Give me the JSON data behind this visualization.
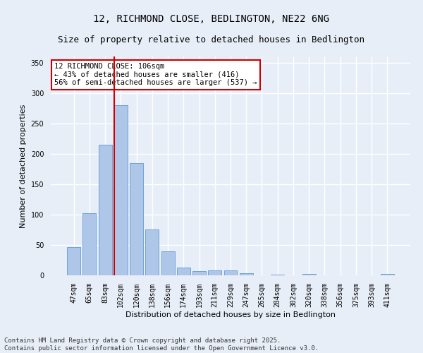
{
  "title_line1": "12, RICHMOND CLOSE, BEDLINGTON, NE22 6NG",
  "title_line2": "Size of property relative to detached houses in Bedlington",
  "xlabel": "Distribution of detached houses by size in Bedlington",
  "ylabel": "Number of detached properties",
  "categories": [
    "47sqm",
    "65sqm",
    "83sqm",
    "102sqm",
    "120sqm",
    "138sqm",
    "156sqm",
    "174sqm",
    "193sqm",
    "211sqm",
    "229sqm",
    "247sqm",
    "265sqm",
    "284sqm",
    "302sqm",
    "320sqm",
    "338sqm",
    "356sqm",
    "375sqm",
    "393sqm",
    "411sqm"
  ],
  "values": [
    47,
    102,
    215,
    280,
    185,
    75,
    40,
    13,
    7,
    8,
    8,
    4,
    0,
    1,
    0,
    2,
    0,
    0,
    0,
    0,
    2
  ],
  "bar_color": "#aec6e8",
  "bar_edge_color": "#5b9bd5",
  "vline_color": "#cc0000",
  "annotation_text": "12 RICHMOND CLOSE: 106sqm\n← 43% of detached houses are smaller (416)\n56% of semi-detached houses are larger (537) →",
  "annotation_box_color": "#ffffff",
  "annotation_box_edge": "#cc0000",
  "ylim": [
    0,
    360
  ],
  "yticks": [
    0,
    50,
    100,
    150,
    200,
    250,
    300,
    350
  ],
  "footnote": "Contains HM Land Registry data © Crown copyright and database right 2025.\nContains public sector information licensed under the Open Government Licence v3.0.",
  "bg_color": "#e8eef8",
  "plot_bg_color": "#e8eef8",
  "grid_color": "#ffffff",
  "title_fontsize": 10,
  "subtitle_fontsize": 9,
  "axis_label_fontsize": 8,
  "tick_fontsize": 7,
  "annotation_fontsize": 7.5,
  "footnote_fontsize": 6.5
}
